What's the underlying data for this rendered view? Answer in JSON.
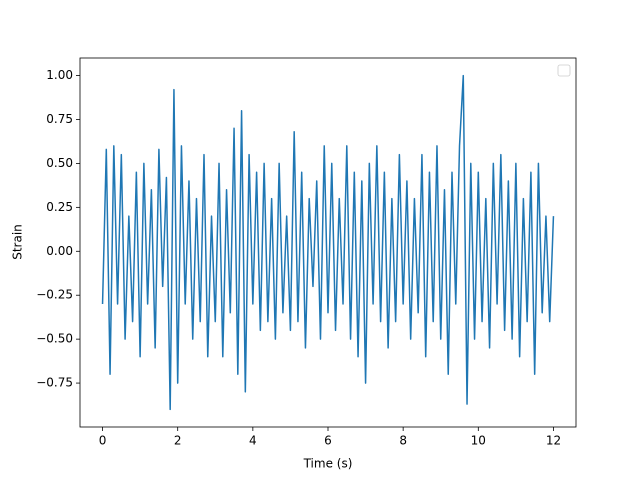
{
  "chart_data": {
    "type": "line",
    "xlabel": "Time (s)",
    "ylabel": "Strain",
    "color": "#1f77b4",
    "legend": "upper right",
    "x": [
      0,
      0.1,
      0.2,
      0.3,
      0.4,
      0.5,
      0.6,
      0.7,
      0.8,
      0.9,
      1,
      1.1,
      1.2,
      1.3,
      1.4,
      1.5,
      1.6,
      1.7,
      1.8,
      1.9,
      2,
      2.1,
      2.2,
      2.3,
      2.4,
      2.5,
      2.6,
      2.7,
      2.8,
      2.9,
      3,
      3.1,
      3.2,
      3.3,
      3.4,
      3.5,
      3.6,
      3.7,
      3.8,
      3.9,
      4,
      4.1,
      4.2,
      4.3,
      4.4,
      4.5,
      4.6,
      4.7,
      4.8,
      4.9,
      5,
      5.1,
      5.2,
      5.3,
      5.4,
      5.5,
      5.6,
      5.7,
      5.8,
      5.9,
      6,
      6.1,
      6.2,
      6.3,
      6.4,
      6.5,
      6.6,
      6.7,
      6.8,
      6.9,
      7,
      7.1,
      7.2,
      7.3,
      7.4,
      7.5,
      7.6,
      7.7,
      7.8,
      7.9,
      8,
      8.1,
      8.2,
      8.3,
      8.4,
      8.5,
      8.6,
      8.7,
      8.8,
      8.9,
      9,
      9.1,
      9.2,
      9.3,
      9.4,
      9.5,
      9.6,
      9.7,
      9.8,
      9.9,
      10,
      10.1,
      10.2,
      10.3,
      10.4,
      10.5,
      10.6,
      10.7,
      10.8,
      10.9,
      11,
      11.1,
      11.2,
      11.3,
      11.4,
      11.5,
      11.6,
      11.7,
      11.8,
      11.9,
      12
    ],
    "values": [
      -0.3,
      0.58,
      -0.7,
      0.6,
      -0.3,
      0.55,
      -0.5,
      0.2,
      -0.4,
      0.45,
      -0.6,
      0.5,
      -0.3,
      0.35,
      -0.55,
      0.58,
      -0.2,
      0.42,
      -0.9,
      0.92,
      -0.75,
      0.6,
      -0.3,
      0.4,
      -0.5,
      0.3,
      -0.4,
      0.55,
      -0.6,
      0.2,
      -0.4,
      0.5,
      -0.6,
      0.35,
      -0.35,
      0.7,
      -0.7,
      0.8,
      -0.8,
      0.55,
      -0.3,
      0.45,
      -0.45,
      0.5,
      -0.4,
      0.3,
      -0.5,
      0.5,
      -0.35,
      0.2,
      -0.45,
      0.68,
      -0.4,
      0.45,
      -0.55,
      0.3,
      -0.2,
      0.4,
      -0.5,
      0.6,
      -0.35,
      0.5,
      -0.45,
      0.3,
      -0.3,
      0.6,
      -0.5,
      0.45,
      -0.6,
      0.4,
      -0.75,
      0.5,
      -0.3,
      0.6,
      -0.4,
      0.45,
      -0.55,
      0.3,
      -0.4,
      0.55,
      -0.3,
      0.4,
      -0.5,
      0.3,
      -0.35,
      0.55,
      -0.6,
      0.45,
      -0.4,
      0.6,
      -0.5,
      0.35,
      -0.7,
      0.45,
      -0.3,
      0.6,
      1.0,
      -0.87,
      0.5,
      -0.5,
      0.45,
      -0.4,
      0.3,
      -0.55,
      0.5,
      -0.3,
      0.55,
      -0.45,
      0.4,
      -0.5,
      0.5,
      -0.6,
      0.3,
      -0.4,
      0.45,
      -0.7,
      0.5,
      -0.35,
      0.2,
      -0.4,
      0.2
    ],
    "xlim": [
      -0.6,
      12.6
    ],
    "ylim": [
      -1.0,
      1.1
    ],
    "xticks": [
      0,
      2,
      4,
      6,
      8,
      10,
      12
    ],
    "yticks": [
      {
        "value": -0.75,
        "label": "−0.75"
      },
      {
        "value": -0.5,
        "label": "−0.50"
      },
      {
        "value": -0.25,
        "label": "−0.25"
      },
      {
        "value": 0,
        "label": "0.00"
      },
      {
        "value": 0.25,
        "label": "0.25"
      },
      {
        "value": 0.5,
        "label": "0.50"
      },
      {
        "value": 0.75,
        "label": "0.75"
      },
      {
        "value": 1,
        "label": "1.00"
      }
    ]
  }
}
